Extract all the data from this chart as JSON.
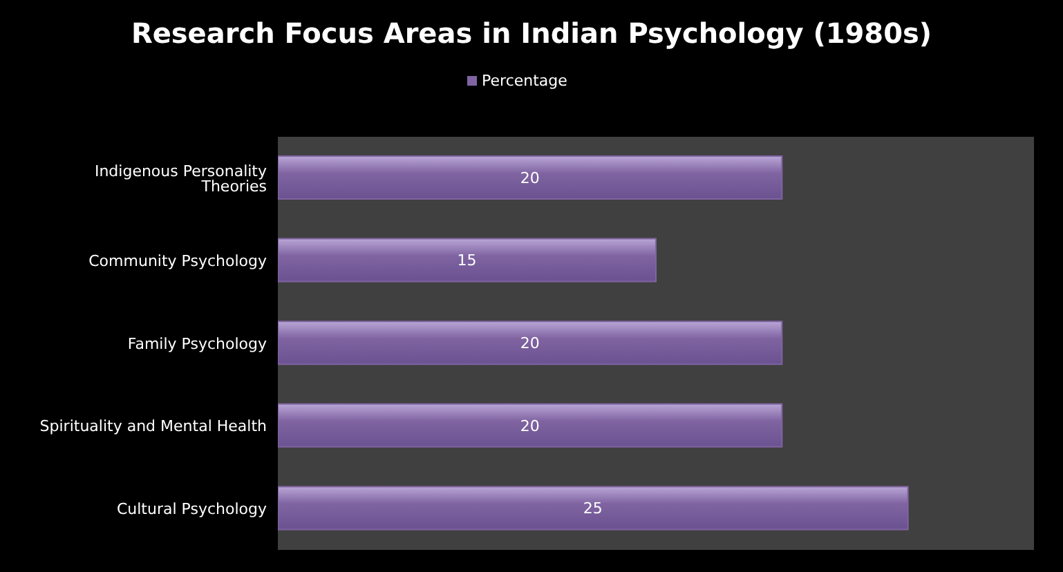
{
  "chart_data": {
    "type": "bar",
    "orientation": "horizontal",
    "title": "Research Focus Areas in Indian Psychology (1980s)",
    "categories": [
      "Indigenous Personality Theories",
      "Community Psychology",
      "Family Psychology",
      "Spirituality and Mental Health",
      "Cultural Psychology"
    ],
    "series": [
      {
        "name": "Percentage",
        "color": "#8064a2",
        "values": [
          20,
          15,
          20,
          20,
          25
        ]
      }
    ],
    "xlim": [
      0,
      30
    ],
    "tick_labels": "y",
    "data_labels": true,
    "legend": "top"
  }
}
